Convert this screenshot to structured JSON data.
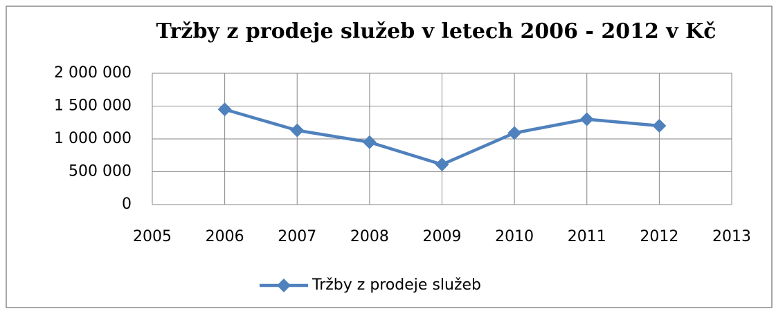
{
  "chart_data": {
    "type": "line",
    "title": "Tržby z prodeje služeb v letech 2006 - 2012 v Kč",
    "x": [
      2006,
      2007,
      2008,
      2009,
      2010,
      2011,
      2012
    ],
    "series": [
      {
        "name": "Tržby z prodeje služeb",
        "color": "#4f81bd",
        "values": [
          1450000,
          1130000,
          950000,
          610000,
          1090000,
          1300000,
          1200000
        ]
      }
    ],
    "xlim": [
      2005,
      2013
    ],
    "xticks": [
      2005,
      2006,
      2007,
      2008,
      2009,
      2010,
      2011,
      2012,
      2013
    ],
    "ylim": [
      0,
      2000000
    ],
    "yticks": [
      0,
      {
        "value": 500000,
        "label": "500 000"
      },
      {
        "value": 1000000,
        "label": "1 000 000"
      },
      {
        "value": 1500000,
        "label": "1 500 000"
      },
      {
        "value": 2000000,
        "label": "2 000 000"
      }
    ],
    "grid": true,
    "legend": "bottom"
  }
}
